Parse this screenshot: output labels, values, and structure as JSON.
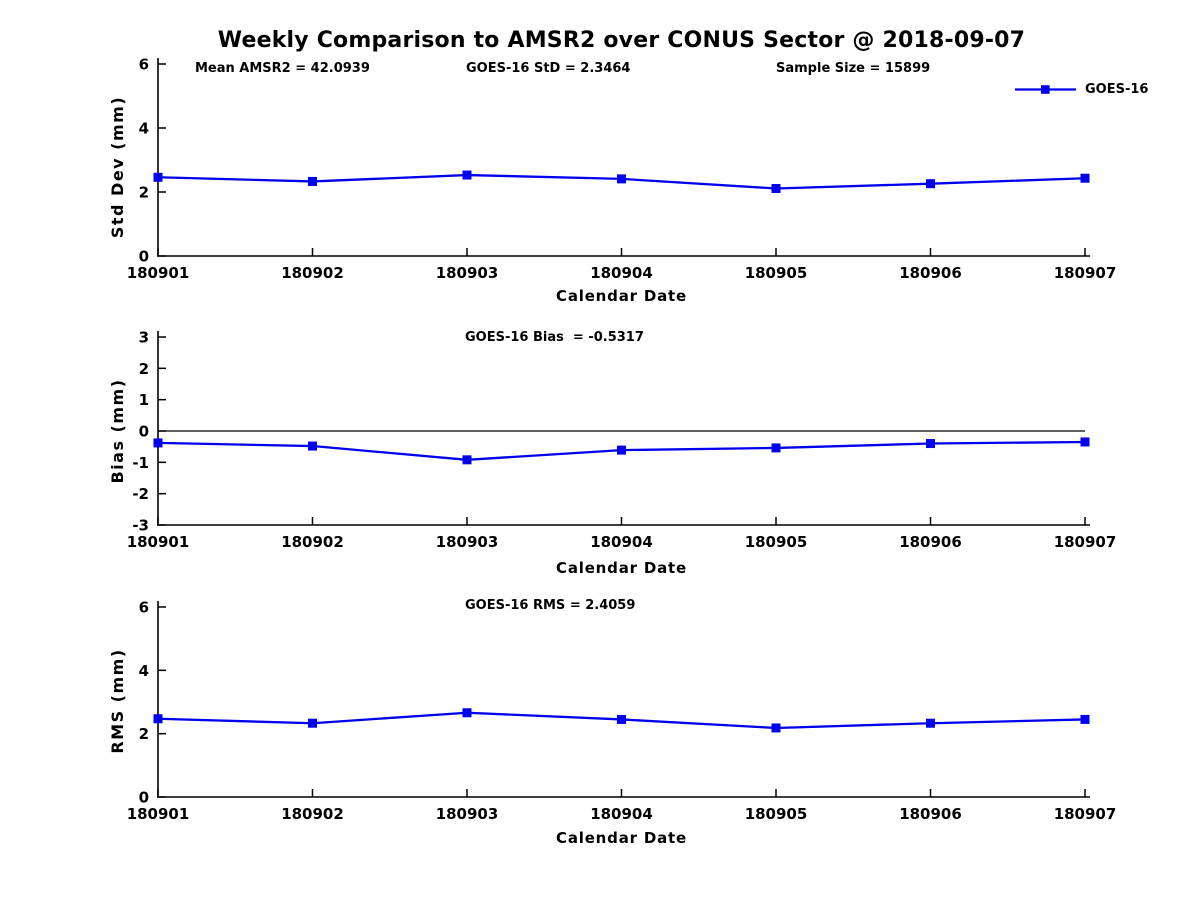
{
  "page_title": "Weekly Comparison to AMSR2 over CONUS Sector @ 2018-09-07",
  "series_color": "#0000EE",
  "axis_color": "#000000",
  "categories": [
    "180901",
    "180902",
    "180903",
    "180904",
    "180905",
    "180906",
    "180907"
  ],
  "chart_data": [
    {
      "type": "line",
      "name": "std-dev",
      "title": "",
      "ylabel": "Std Dev (mm)",
      "xlabel": "Calendar Date",
      "ylim": [
        0,
        6
      ],
      "y_ticks": [
        0,
        2,
        4,
        6
      ],
      "grid": false,
      "legend_position": "top-right",
      "categories": [
        "180901",
        "180902",
        "180903",
        "180904",
        "180905",
        "180906",
        "180907"
      ],
      "annotations": [
        "Mean AMSR2 = 42.0939",
        "GOES-16 StD = 2.3464",
        "Sample Size = 15899"
      ],
      "series": [
        {
          "name": "GOES-16",
          "color": "#0000EE",
          "marker": "square",
          "values": [
            2.46,
            2.33,
            2.53,
            2.41,
            2.11,
            2.26,
            2.43
          ]
        }
      ]
    },
    {
      "type": "line",
      "name": "bias",
      "title": "GOES-16 Bias  = -0.5317",
      "ylabel": "Bias (mm)",
      "xlabel": "Calendar Date",
      "ylim": [
        -3,
        3
      ],
      "y_ticks": [
        3,
        2,
        1,
        0,
        -1,
        -2,
        -3
      ],
      "zero_line": true,
      "grid": false,
      "categories": [
        "180901",
        "180902",
        "180903",
        "180904",
        "180905",
        "180906",
        "180907"
      ],
      "series": [
        {
          "name": "GOES-16",
          "color": "#0000EE",
          "marker": "square",
          "values": [
            -0.38,
            -0.48,
            -0.92,
            -0.61,
            -0.54,
            -0.4,
            -0.35
          ]
        }
      ]
    },
    {
      "type": "line",
      "name": "rms",
      "title": "GOES-16 RMS = 2.4059",
      "ylabel": "RMS (mm)",
      "xlabel": "Calendar Date",
      "ylim": [
        0,
        6
      ],
      "y_ticks": [
        0,
        2,
        4,
        6
      ],
      "grid": false,
      "categories": [
        "180901",
        "180902",
        "180903",
        "180904",
        "180905",
        "180906",
        "180907"
      ],
      "series": [
        {
          "name": "GOES-16",
          "color": "#0000EE",
          "marker": "square",
          "values": [
            2.47,
            2.33,
            2.66,
            2.45,
            2.18,
            2.33,
            2.45
          ]
        }
      ]
    }
  ]
}
